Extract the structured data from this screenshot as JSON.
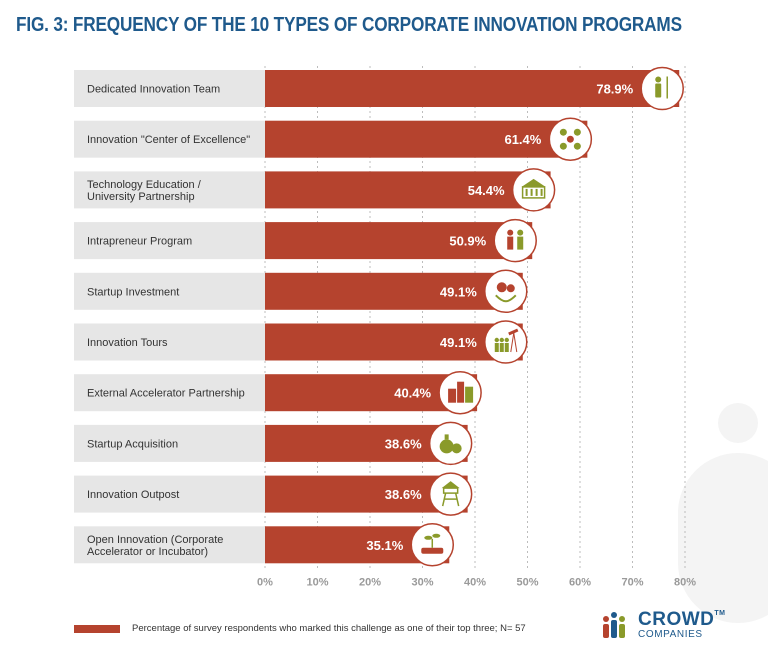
{
  "title": "FIG. 3: FREQUENCY OF THE 10 TYPES OF CORPORATE INNOVATION PROGRAMS",
  "colors": {
    "bar": "#b5432e",
    "label_bg": "#e6e6e6",
    "title": "#1f5a8c",
    "icon": "#8a9a2a",
    "icon_red": "#b5432e"
  },
  "chart_data": {
    "type": "bar",
    "orientation": "horizontal",
    "title": "FIG. 3: FREQUENCY OF THE 10 TYPES OF CORPORATE INNOVATION PROGRAMS",
    "categories": [
      [
        "Dedicated Innovation Team"
      ],
      [
        "Innovation \"Center of Excellence\""
      ],
      [
        "Technology Education /",
        "University Partnership"
      ],
      [
        "Intrapreneur Program"
      ],
      [
        "Startup Investment"
      ],
      [
        "Innovation Tours"
      ],
      [
        "External Accelerator Partnership"
      ],
      [
        "Startup Acquisition"
      ],
      [
        "Innovation Outpost"
      ],
      [
        "Open Innovation (Corporate",
        "Accelerator or Incubator)"
      ]
    ],
    "values": [
      78.9,
      61.4,
      54.4,
      50.9,
      49.1,
      49.1,
      40.4,
      38.6,
      38.6,
      35.1
    ],
    "value_labels": [
      "78.9%",
      "61.4%",
      "54.4%",
      "50.9%",
      "49.1%",
      "49.1%",
      "40.4%",
      "38.6%",
      "38.6%",
      "35.1%"
    ],
    "icons": [
      "person-flag-icon",
      "team-network-icon",
      "university-building-icon",
      "people-celebrating-icon",
      "money-plant-icon",
      "telescope-group-icon",
      "city-buildings-icon",
      "money-bags-icon",
      "watchtower-icon",
      "seedling-tray-icon"
    ],
    "xlim": [
      0,
      80
    ],
    "xticks": [
      "0%",
      "10%",
      "20%",
      "30%",
      "40%",
      "50%",
      "60%",
      "70%",
      "80%"
    ],
    "grid": "vertical dashed",
    "legend": "bottom-left"
  },
  "legend": {
    "label": "Percentage of survey respondents who marked this challenge as one of their top three; N= 57"
  },
  "logo": {
    "name": "CROWD",
    "tm": "TM",
    "sub": "COMPANIES"
  }
}
